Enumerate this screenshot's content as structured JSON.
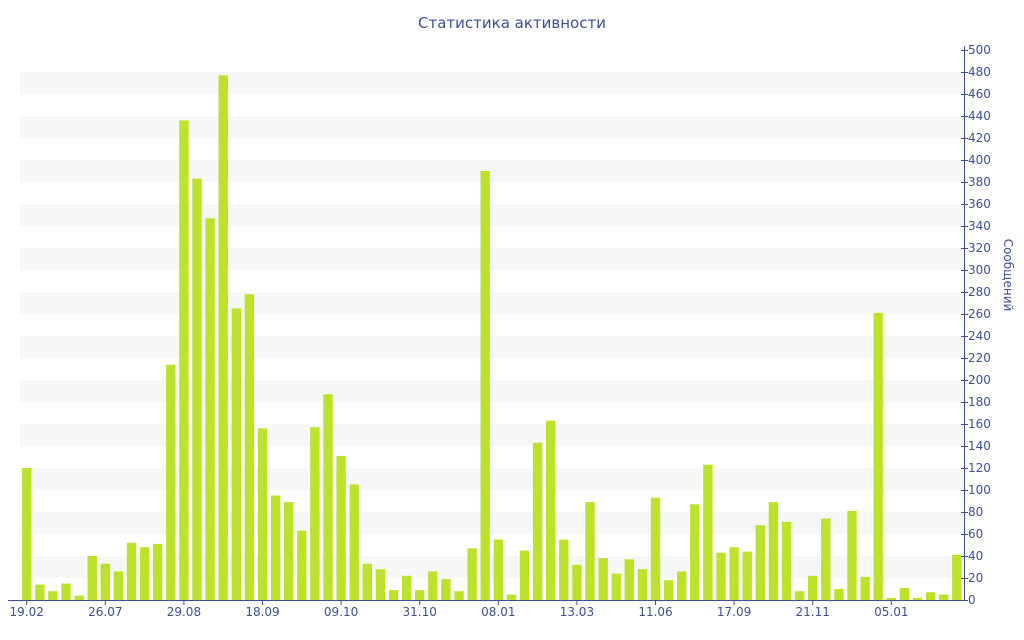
{
  "chart_data": {
    "type": "bar",
    "title": "Статистика активности",
    "ylabel": "Сообщений",
    "ylim": [
      0,
      500
    ],
    "y_ticks": [
      0,
      20,
      40,
      60,
      80,
      100,
      120,
      140,
      160,
      180,
      200,
      220,
      240,
      260,
      280,
      300,
      320,
      340,
      360,
      380,
      400,
      420,
      440,
      460,
      480,
      500
    ],
    "y_axis_side": "right",
    "bar_color": "#bde22b",
    "band_color": "#f7f7f7",
    "text_color": "#3d4f8f",
    "x_tick_labels": [
      "19.02",
      "26.07",
      "29.08",
      "18.09",
      "09.10",
      "31.10",
      "08.01",
      "13.03",
      "11.06",
      "17.09",
      "21.11",
      "05.01"
    ],
    "x_tick_positions": [
      0,
      6,
      12,
      18,
      24,
      30,
      36,
      42,
      48,
      54,
      60,
      66
    ],
    "values": [
      120,
      14,
      8,
      15,
      4,
      40,
      33,
      26,
      52,
      48,
      51,
      214,
      436,
      383,
      347,
      477,
      265,
      278,
      156,
      95,
      89,
      63,
      157,
      187,
      131,
      105,
      33,
      28,
      9,
      22,
      9,
      26,
      19,
      8,
      47,
      390,
      55,
      5,
      45,
      143,
      163,
      55,
      32,
      89,
      38,
      24,
      37,
      28,
      93,
      18,
      26,
      87,
      123,
      43,
      48,
      44,
      68,
      89,
      71,
      8,
      22,
      74,
      10,
      81,
      21,
      261,
      2,
      11,
      2,
      7,
      5,
      41
    ]
  }
}
